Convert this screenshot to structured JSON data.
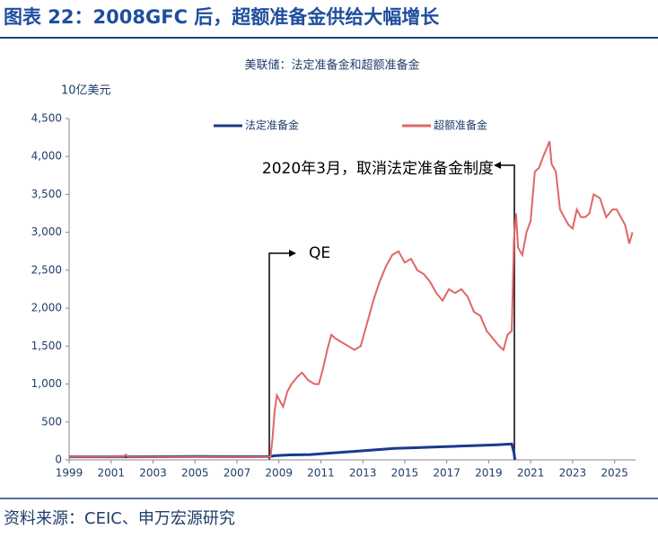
{
  "header": {
    "title": "图表 22：2008GFC 后，超额准备金供给大幅增长"
  },
  "chart_data": {
    "type": "line",
    "title": "美联储：法定准备金和超额准备金",
    "y_label": "10亿美元",
    "xlim": [
      1999,
      2026
    ],
    "xticks": [
      1999,
      2001,
      2003,
      2005,
      2007,
      2009,
      2011,
      2013,
      2015,
      2017,
      2019,
      2021,
      2023,
      2025
    ],
    "ylim": [
      0,
      4500
    ],
    "yticks": [
      0,
      500,
      {
        "value": 1000,
        "label": "1,000"
      },
      {
        "value": 1500,
        "label": "1,500"
      },
      {
        "value": 2000,
        "label": "2,000"
      },
      {
        "value": 2500,
        "label": "2,500"
      },
      {
        "value": 3000,
        "label": "3,000"
      },
      {
        "value": 3500,
        "label": "3,500"
      },
      {
        "value": 4000,
        "label": "4,000"
      },
      {
        "value": 4500,
        "label": "4,500"
      }
    ],
    "series": [
      {
        "name": "法定准备金",
        "color": "#1a3a8c",
        "x": [
          1999,
          2001,
          2003,
          2005,
          2007,
          2008.6,
          2008.8,
          2009.5,
          2010.5,
          2011.5,
          2012.5,
          2013.5,
          2014.5,
          2015.5,
          2016.5,
          2017.5,
          2018.5,
          2019.5,
          2020.1,
          2020.2,
          2020.25
        ],
        "values": [
          40,
          40,
          42,
          45,
          43,
          45,
          55,
          65,
          70,
          90,
          110,
          130,
          150,
          160,
          170,
          180,
          190,
          200,
          210,
          100,
          0
        ]
      },
      {
        "name": "超额准备金",
        "color": "#e06666",
        "x": [
          1999,
          2001.6,
          2001.7,
          2001.8,
          2004,
          2008.6,
          2008.7,
          2008.8,
          2008.9,
          2009.0,
          2009.2,
          2009.4,
          2009.6,
          2009.9,
          2010.1,
          2010.4,
          2010.7,
          2010.9,
          2011.1,
          2011.3,
          2011.5,
          2011.7,
          2012.0,
          2012.3,
          2012.6,
          2012.9,
          2013.2,
          2013.5,
          2013.8,
          2014.1,
          2014.4,
          2014.7,
          2015.0,
          2015.3,
          2015.6,
          2015.9,
          2016.2,
          2016.5,
          2016.8,
          2017.1,
          2017.4,
          2017.7,
          2018.0,
          2018.3,
          2018.6,
          2018.9,
          2019.2,
          2019.5,
          2019.7,
          2019.9,
          2020.1,
          2020.2,
          2020.3,
          2020.4,
          2020.6,
          2020.8,
          2021.0,
          2021.2,
          2021.4,
          2021.6,
          2021.9,
          2022.0,
          2022.2,
          2022.4,
          2022.6,
          2022.8,
          2023.0,
          2023.2,
          2023.4,
          2023.6,
          2023.8,
          2024.0,
          2024.3,
          2024.6,
          2024.9,
          2025.1,
          2025.3,
          2025.5,
          2025.7,
          2025.85
        ],
        "values": [
          40,
          40,
          70,
          40,
          40,
          40,
          300,
          650,
          850,
          800,
          700,
          900,
          1000,
          1100,
          1150,
          1050,
          1000,
          1000,
          1200,
          1450,
          1650,
          1600,
          1550,
          1500,
          1450,
          1500,
          1800,
          2100,
          2350,
          2550,
          2700,
          2750,
          2600,
          2650,
          2500,
          2450,
          2350,
          2200,
          2100,
          2250,
          2200,
          2250,
          2150,
          1950,
          1900,
          1700,
          1600,
          1500,
          1450,
          1650,
          1700,
          2900,
          3250,
          2800,
          2700,
          3000,
          3150,
          3800,
          3850,
          4000,
          4200,
          3900,
          3800,
          3300,
          3200,
          3100,
          3050,
          3300,
          3200,
          3200,
          3250,
          3500,
          3450,
          3200,
          3300,
          3300,
          3200,
          3100,
          2850,
          3000
        ]
      }
    ],
    "annotations": [
      "QE",
      "2020年3月，取消法定准备金制度"
    ]
  },
  "footer": {
    "source": "资料来源：CEIC、申万宏源研究"
  }
}
